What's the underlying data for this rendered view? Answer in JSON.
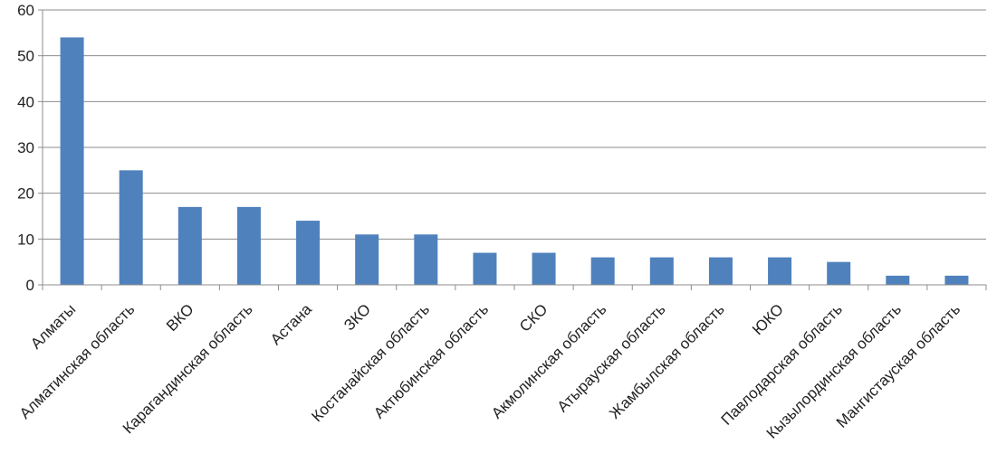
{
  "chart_data": {
    "type": "bar",
    "title": "",
    "xlabel": "",
    "ylabel": "",
    "ylim": [
      0,
      60
    ],
    "yticks": [
      0,
      10,
      20,
      30,
      40,
      50,
      60
    ],
    "grid": true,
    "bar_color": "#4F81BD",
    "categories": [
      "Алматы",
      "Алматинская область",
      "ВКО",
      "Карагандинская  область",
      "Астана",
      "ЗКО",
      "Костанайская  область",
      "Актюбинская область",
      "СКО",
      "Акмолинская область",
      "Атырауская область",
      "Жамбылская область",
      "ЮКО",
      "Павлодарская область",
      "Кызылординская  область",
      "Мангистауская область"
    ],
    "values": [
      54,
      25,
      17,
      17,
      14,
      11,
      11,
      7,
      7,
      6,
      6,
      6,
      6,
      5,
      2,
      2
    ]
  }
}
